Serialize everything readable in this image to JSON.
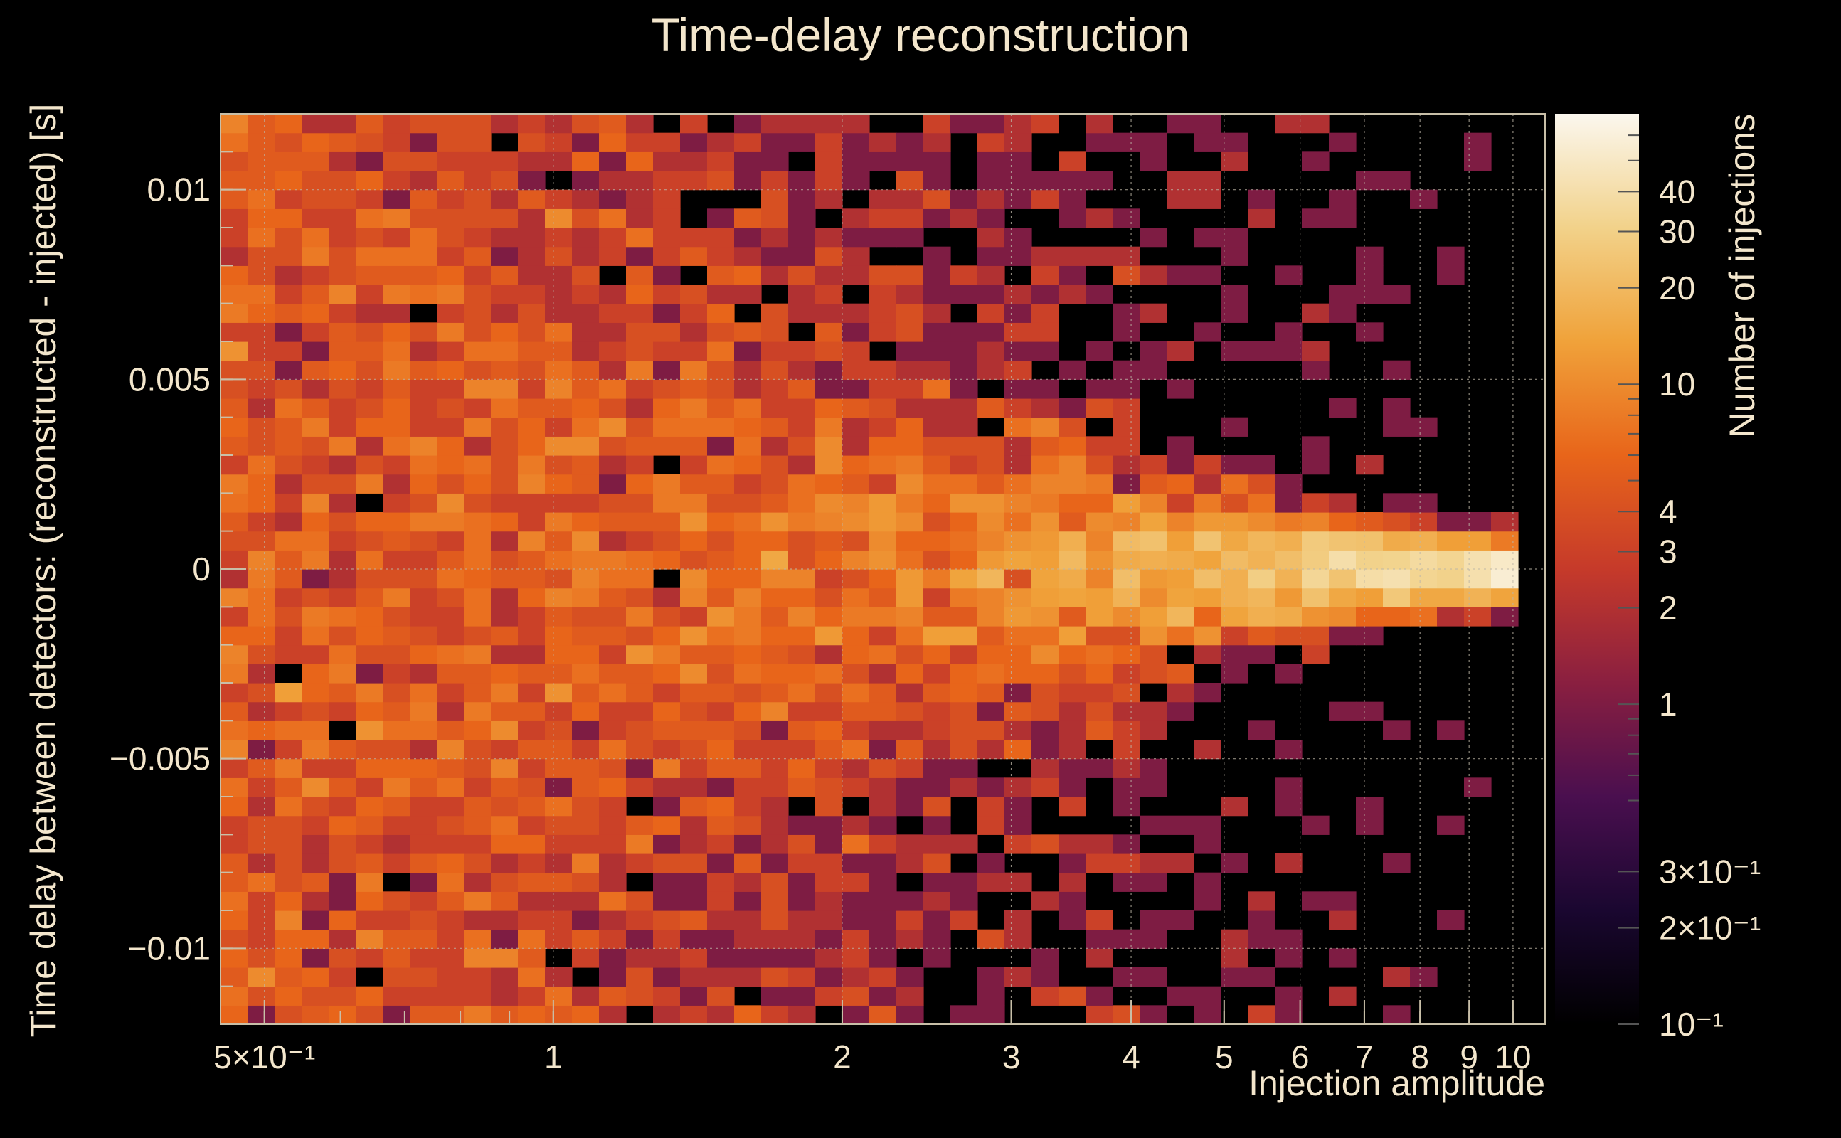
{
  "chart_data": {
    "type": "heatmap",
    "title": "Time-delay reconstruction",
    "xlabel": "Injection amplitude",
    "ylabel": "Time delay between detectors: (reconstructed - injected) [s]",
    "zlabel": "Number of injections",
    "x_scale": "log",
    "z_scale": "log",
    "xlim": [
      0.45,
      10.8
    ],
    "ylim": [
      -0.012,
      0.012
    ],
    "zlim": [
      0.1,
      70
    ],
    "grid": true,
    "x_ticks": [
      {
        "value": 0.5,
        "label": "5×10⁻¹"
      },
      {
        "value": 1,
        "label": "1"
      },
      {
        "value": 2,
        "label": "2"
      },
      {
        "value": 3,
        "label": "3"
      },
      {
        "value": 4,
        "label": "4"
      },
      {
        "value": 5,
        "label": "5"
      },
      {
        "value": 6,
        "label": "6"
      },
      {
        "value": 7,
        "label": "7"
      },
      {
        "value": 8,
        "label": "8"
      },
      {
        "value": 9,
        "label": "9"
      },
      {
        "value": 10,
        "label": "10"
      }
    ],
    "y_ticks": [
      {
        "value": 0.01,
        "label": "0.01"
      },
      {
        "value": 0.005,
        "label": "0.005"
      },
      {
        "value": 0,
        "label": "0"
      },
      {
        "value": -0.005,
        "label": "−0.005"
      },
      {
        "value": -0.01,
        "label": "−0.01"
      }
    ],
    "z_ticks": [
      {
        "value": 40,
        "label": "40"
      },
      {
        "value": 30,
        "label": "30"
      },
      {
        "value": 20,
        "label": "20"
      },
      {
        "value": 10,
        "label": "10"
      },
      {
        "value": 4,
        "label": "4"
      },
      {
        "value": 3,
        "label": "3"
      },
      {
        "value": 2,
        "label": "2"
      },
      {
        "value": 1,
        "label": "1"
      },
      {
        "value": 0.3,
        "label": "3×10⁻¹"
      },
      {
        "value": 0.2,
        "label": "2×10⁻¹"
      },
      {
        "value": 0.1,
        "label": "10⁻¹"
      }
    ],
    "bins": {
      "nx": 49,
      "ny": 48
    },
    "data_description": "Counts concentrated near zero delay; the peak narrows and rises as injection amplitude increases, reaching about 50 injections per bin at the highest amplitudes.",
    "colormap": [
      "#000000",
      "#1a0730",
      "#4a0f4f",
      "#8a1f40",
      "#c63a2a",
      "#e8651a",
      "#f0a23a",
      "#f2d28a",
      "#fbf7ee"
    ]
  }
}
